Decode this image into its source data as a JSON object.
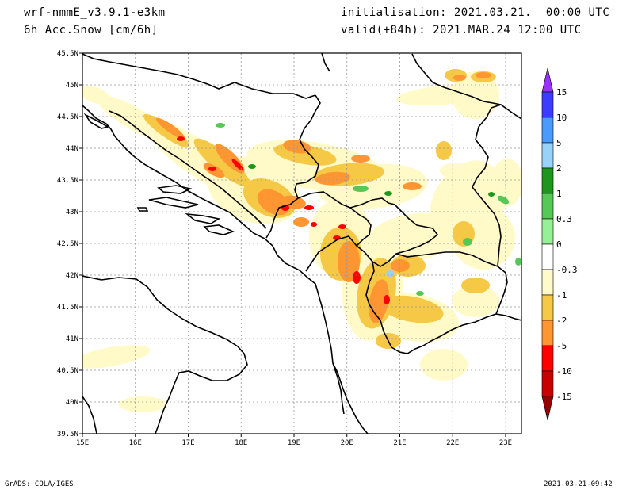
{
  "header": {
    "model": "wrf-nmmE_v3.9.1-e3km",
    "variable": "6h Acc.Snow [cm/6h]",
    "initialisation": "initialisation: 2021.03.21.  00:00 UTC",
    "valid": "valid(+84h): 2021.MAR.24 12:00 UTC"
  },
  "footer": {
    "left": "GrADS: COLA/IGES",
    "right": "2021-03-21-09:42"
  },
  "map": {
    "lon_range": [
      15,
      23.3
    ],
    "lat_range": [
      39.5,
      45.5
    ],
    "x_ticks": [
      "15E",
      "16E",
      "17E",
      "18E",
      "19E",
      "20E",
      "21E",
      "22E",
      "23E"
    ],
    "y_ticks": [
      "39.5N",
      "40N",
      "40.5N",
      "41N",
      "41.5N",
      "42N",
      "42.5N",
      "43N",
      "43.5N",
      "44N",
      "44.5N",
      "45N",
      "45.5N"
    ],
    "grid": true
  },
  "colorbar": {
    "levels": [
      "15",
      "10",
      "5",
      "2",
      "1",
      "0.3",
      "0",
      "-0.3",
      "-1",
      "-2",
      "-5",
      "-10",
      "-15"
    ],
    "colors": [
      "#9932ff",
      "#3c3cff",
      "#4b9bff",
      "#96d2fa",
      "#1e961e",
      "#55c855",
      "#96f096",
      "#ffffff",
      "#fffac8",
      "#f5c846",
      "#ff9632",
      "#ff0000",
      "#c80000",
      "#960000"
    ]
  },
  "fields": {
    "colors": {
      "pale": "#fffac8",
      "yellow": "#f5c846",
      "orange": "#ff9632",
      "red": "#ff0000",
      "green": "#55c855",
      "dkgreen": "#1e961e",
      "lgreen": "#96f096",
      "blue": "#96d2fa"
    }
  }
}
